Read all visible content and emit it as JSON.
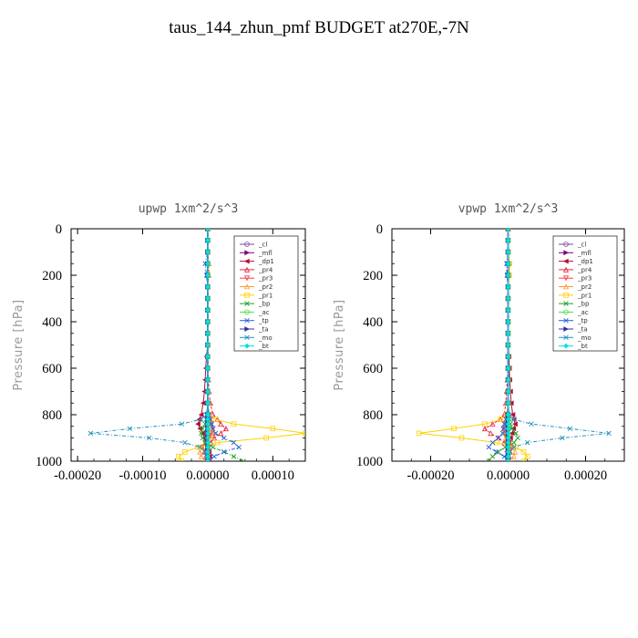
{
  "title": "taus_144_zhun_pmf  BUDGET at270E,-7N",
  "chart_data": [
    {
      "type": "line",
      "title": "upwp  1xm^2/s^3",
      "xlabel": "",
      "ylabel": "Pressure [hPa]",
      "xlim": [
        -0.00021,
        0.00015
      ],
      "ylim": [
        1000,
        0
      ],
      "xticks": [
        -0.0002,
        -0.0001,
        0.0,
        0.0001
      ],
      "xtick_labels": [
        "-0.00020",
        "-0.00010",
        "0.00000",
        "0.00010"
      ],
      "yticks": [
        0,
        200,
        400,
        600,
        800,
        1000
      ],
      "ytick_labels": [
        "0",
        "200",
        "400",
        "600",
        "800",
        "1000"
      ],
      "legend_position": "top-right",
      "y": [
        0,
        50,
        100,
        150,
        200,
        250,
        300,
        350,
        400,
        450,
        500,
        550,
        600,
        650,
        700,
        750,
        800,
        820,
        840,
        860,
        880,
        900,
        920,
        940,
        960,
        980,
        1000
      ],
      "series": [
        {
          "name": "_cl",
          "color": "#7a4a9a",
          "marker": "o",
          "values": [
            0,
            0,
            0,
            0,
            0,
            0,
            0,
            0,
            0,
            0,
            0,
            0,
            0,
            0,
            0,
            0,
            0,
            0,
            0,
            0,
            0,
            0,
            0,
            0,
            0,
            0,
            0
          ]
        },
        {
          "name": "_mfl",
          "color": "#7a007a",
          "marker": ">",
          "values": [
            0,
            0,
            0,
            0,
            0,
            0,
            0,
            0,
            0,
            0,
            0,
            0,
            0,
            0,
            0,
            0,
            0,
            0,
            0,
            0,
            0,
            0,
            0,
            0,
            0,
            0,
            0
          ]
        },
        {
          "name": "_dp1",
          "color": "#b0103a",
          "marker": "<",
          "values": [
            0,
            0,
            0,
            0,
            0,
            0,
            0,
            0,
            0,
            0,
            0,
            -2e-06,
            -3e-06,
            -4e-06,
            -5e-06,
            -7e-06,
            -1e-05,
            -1.3e-05,
            -1.5e-05,
            -1.2e-05,
            -8e-06,
            -5e-06,
            -2e-06,
            0,
            2e-06,
            3e-06,
            2e-06
          ]
        },
        {
          "name": "_pr4",
          "color": "#e8203a",
          "marker": "^",
          "values": [
            0,
            0,
            0,
            0,
            0,
            0,
            0,
            0,
            0,
            0,
            0,
            0,
            0,
            1e-06,
            2e-06,
            4e-06,
            8e-06,
            1.5e-05,
            2e-05,
            2.8e-05,
            2e-05,
            1e-05,
            5e-06,
            0,
            -5e-06,
            -3e-06,
            0
          ]
        },
        {
          "name": "_pr3",
          "color": "#ff3a3a",
          "marker": "v",
          "values": [
            0,
            0,
            0,
            0,
            0,
            0,
            0,
            0,
            0,
            0,
            0,
            0,
            0,
            0,
            0,
            0,
            2e-06,
            4e-06,
            6e-06,
            8e-06,
            5e-06,
            2e-06,
            -4e-06,
            -8e-06,
            -3e-06,
            0,
            0
          ]
        },
        {
          "name": "_pr2",
          "color": "#ff9a30",
          "marker": "^",
          "values": [
            0,
            0,
            0,
            2e-06,
            2e-06,
            0,
            0,
            0,
            0,
            0,
            0,
            0,
            0,
            0,
            0,
            0,
            1e-06,
            2e-06,
            4e-06,
            6e-06,
            1e-05,
            5e-06,
            0,
            -8e-06,
            -1.2e-05,
            -1e-05,
            -4e-06
          ]
        },
        {
          "name": "_pr1",
          "color": "#ffd000",
          "marker": "s",
          "values": [
            0,
            0,
            0,
            0,
            0,
            0,
            0,
            0,
            0,
            0,
            0,
            0,
            0,
            0,
            0,
            0,
            2e-06,
            1.2e-05,
            4e-05,
            0.0001,
            0.00015,
            9e-05,
            1.5e-05,
            -1.5e-05,
            -3.5e-05,
            -4.5e-05,
            -4e-05
          ]
        },
        {
          "name": "_bp",
          "color": "#20a020",
          "marker": "x",
          "values": [
            0,
            0,
            0,
            0,
            0,
            0,
            0,
            0,
            0,
            0,
            0,
            0,
            0,
            0,
            0,
            0,
            0,
            -2e-06,
            -4e-06,
            -8e-06,
            -1e-05,
            -8e-06,
            -4e-06,
            8e-06,
            2.5e-05,
            4e-05,
            5.5e-05
          ]
        },
        {
          "name": "_ac",
          "color": "#40e040",
          "marker": "o",
          "values": [
            0,
            0,
            0,
            0,
            0,
            0,
            0,
            0,
            0,
            0,
            0,
            0,
            0,
            0,
            0,
            0,
            0,
            0,
            0,
            0,
            0,
            0,
            0,
            0,
            0,
            0,
            0
          ]
        },
        {
          "name": "_tp",
          "color": "#2060e0",
          "marker": "x",
          "values": [
            0,
            0,
            0,
            -4e-06,
            -2e-06,
            0,
            0,
            0,
            0,
            0,
            0,
            0,
            0,
            0,
            0,
            0,
            2e-06,
            4e-06,
            6e-06,
            8e-06,
            1.2e-05,
            2.5e-05,
            4e-05,
            4.8e-05,
            2.5e-05,
            1e-05,
            2e-06
          ]
        },
        {
          "name": "_ta",
          "color": "#3030a0",
          "marker": ">",
          "values": [
            0,
            0,
            0,
            0,
            0,
            0,
            0,
            0,
            0,
            0,
            0,
            0,
            0,
            0,
            0,
            0,
            0,
            0,
            0,
            0,
            0,
            0,
            0,
            0,
            0,
            0,
            0
          ]
        },
        {
          "name": "_mo",
          "color": "#2090c0",
          "marker": "x",
          "values": [
            0,
            0,
            0,
            0,
            0,
            0,
            0,
            0,
            0,
            0,
            0,
            0,
            0,
            0,
            0,
            0,
            -2e-06,
            -1e-05,
            -4e-05,
            -0.00012,
            -0.00018,
            -9e-05,
            -3.5e-05,
            -1.2e-05,
            -4e-06,
            -1e-06,
            0
          ]
        },
        {
          "name": "_bt",
          "color": "#00e0e0",
          "marker": "D",
          "values": [
            0,
            0,
            0,
            0,
            0,
            0,
            0,
            0,
            0,
            0,
            0,
            0,
            0,
            0,
            0,
            0,
            0,
            0,
            0,
            0,
            0,
            0,
            0,
            0,
            0,
            0,
            0
          ]
        }
      ]
    },
    {
      "type": "line",
      "title": "vpwp  1xm^2/s^3",
      "xlabel": "",
      "ylabel": "Pressure [hPa]",
      "xlim": [
        -0.0003,
        0.0003
      ],
      "ylim": [
        1000,
        0
      ],
      "xticks": [
        -0.0002,
        0.0,
        0.0002
      ],
      "xtick_labels": [
        "-0.00020",
        "0.00000",
        "0.00020"
      ],
      "yticks": [
        0,
        200,
        400,
        600,
        800,
        1000
      ],
      "ytick_labels": [
        "0",
        "200",
        "400",
        "600",
        "800",
        "1000"
      ],
      "legend_position": "top-right",
      "y": [
        0,
        50,
        100,
        150,
        200,
        250,
        300,
        350,
        400,
        450,
        500,
        550,
        600,
        650,
        700,
        750,
        800,
        820,
        840,
        860,
        880,
        900,
        920,
        940,
        960,
        980,
        1000
      ],
      "series": [
        {
          "name": "_cl",
          "color": "#7a4a9a",
          "marker": "o",
          "values": [
            0,
            0,
            0,
            0,
            0,
            0,
            0,
            0,
            0,
            0,
            0,
            0,
            0,
            0,
            0,
            0,
            0,
            0,
            0,
            0,
            0,
            0,
            0,
            0,
            0,
            0,
            0
          ]
        },
        {
          "name": "_mfl",
          "color": "#7a007a",
          "marker": ">",
          "values": [
            0,
            0,
            0,
            0,
            0,
            0,
            0,
            0,
            0,
            0,
            0,
            0,
            0,
            0,
            0,
            0,
            0,
            0,
            0,
            0,
            0,
            0,
            0,
            0,
            0,
            0,
            0
          ]
        },
        {
          "name": "_dp1",
          "color": "#b0103a",
          "marker": "<",
          "values": [
            0,
            0,
            0,
            0,
            0,
            0,
            0,
            0,
            0,
            0,
            0,
            2e-06,
            3e-06,
            4e-06,
            6e-06,
            8e-06,
            1.2e-05,
            1.5e-05,
            1.8e-05,
            1.4e-05,
            1e-05,
            6e-06,
            2e-06,
            0,
            -3e-06,
            -4e-06,
            -2e-06
          ]
        },
        {
          "name": "_pr4",
          "color": "#e8203a",
          "marker": "^",
          "values": [
            0,
            0,
            0,
            0,
            0,
            0,
            0,
            0,
            0,
            0,
            0,
            0,
            0,
            -2e-06,
            -4e-06,
            -6e-06,
            -1e-05,
            -2e-05,
            -4e-05,
            -6e-05,
            -4.5e-05,
            -2.5e-05,
            -1e-05,
            0,
            5e-06,
            3e-06,
            0
          ]
        },
        {
          "name": "_pr3",
          "color": "#ff3a3a",
          "marker": "v",
          "values": [
            0,
            0,
            0,
            0,
            0,
            0,
            0,
            0,
            0,
            0,
            0,
            0,
            0,
            0,
            0,
            0,
            -2e-06,
            -4e-06,
            -8e-06,
            -1.2e-05,
            -8e-06,
            -4e-06,
            4e-06,
            8e-06,
            3e-06,
            0,
            0
          ]
        },
        {
          "name": "_pr2",
          "color": "#ff9a30",
          "marker": "^",
          "values": [
            0,
            0,
            0,
            3e-06,
            2e-06,
            0,
            0,
            0,
            0,
            0,
            0,
            0,
            0,
            0,
            0,
            0,
            -2e-06,
            -4e-06,
            -8e-06,
            -1e-05,
            -1.2e-05,
            -6e-06,
            0,
            1e-05,
            1.8e-05,
            1.5e-05,
            6e-06
          ]
        },
        {
          "name": "_pr1",
          "color": "#ffd000",
          "marker": "s",
          "values": [
            0,
            0,
            0,
            4e-06,
            3e-06,
            0,
            0,
            0,
            0,
            0,
            0,
            0,
            0,
            0,
            0,
            0,
            -4e-06,
            -2e-05,
            -6e-05,
            -0.00014,
            -0.00023,
            -0.00012,
            -3e-05,
            2e-05,
            4e-05,
            5e-05,
            4e-05
          ]
        },
        {
          "name": "_bp",
          "color": "#20a020",
          "marker": "x",
          "values": [
            0,
            0,
            0,
            0,
            0,
            0,
            0,
            0,
            0,
            0,
            0,
            0,
            0,
            0,
            0,
            0,
            0,
            3e-06,
            6e-06,
            1e-05,
            2e-05,
            2.5e-05,
            1.5e-05,
            -8e-06,
            -2.5e-05,
            -4e-05,
            -5e-05
          ]
        },
        {
          "name": "_ac",
          "color": "#40e040",
          "marker": "o",
          "values": [
            0,
            0,
            0,
            0,
            0,
            0,
            0,
            0,
            0,
            0,
            0,
            0,
            0,
            0,
            0,
            0,
            0,
            0,
            0,
            0,
            0,
            0,
            0,
            0,
            0,
            0,
            0
          ]
        },
        {
          "name": "_tp",
          "color": "#2060e0",
          "marker": "x",
          "values": [
            0,
            0,
            0,
            -4e-06,
            -3e-06,
            0,
            0,
            0,
            0,
            0,
            0,
            0,
            0,
            0,
            0,
            0,
            -2e-06,
            -6e-06,
            -1e-05,
            -1.2e-05,
            -1.4e-05,
            -2.5e-05,
            -4e-05,
            -5e-05,
            -3e-05,
            -1e-05,
            -2e-06
          ]
        },
        {
          "name": "_ta",
          "color": "#3030a0",
          "marker": ">",
          "values": [
            0,
            0,
            0,
            0,
            0,
            0,
            0,
            0,
            0,
            0,
            0,
            0,
            0,
            0,
            0,
            0,
            0,
            0,
            0,
            0,
            0,
            0,
            0,
            0,
            0,
            0,
            0
          ]
        },
        {
          "name": "_mo",
          "color": "#2090c0",
          "marker": "x",
          "values": [
            0,
            0,
            0,
            0,
            0,
            0,
            0,
            0,
            0,
            0,
            0,
            0,
            0,
            0,
            0,
            0,
            3e-06,
            1.5e-05,
            6e-05,
            0.00016,
            0.00026,
            0.00014,
            5e-05,
            1.5e-05,
            5e-06,
            1e-06,
            0
          ]
        },
        {
          "name": "_bt",
          "color": "#00e0e0",
          "marker": "D",
          "values": [
            0,
            0,
            0,
            0,
            0,
            0,
            0,
            0,
            0,
            0,
            0,
            0,
            0,
            0,
            0,
            0,
            0,
            0,
            0,
            0,
            0,
            0,
            0,
            0,
            0,
            0,
            0
          ]
        }
      ]
    }
  ]
}
